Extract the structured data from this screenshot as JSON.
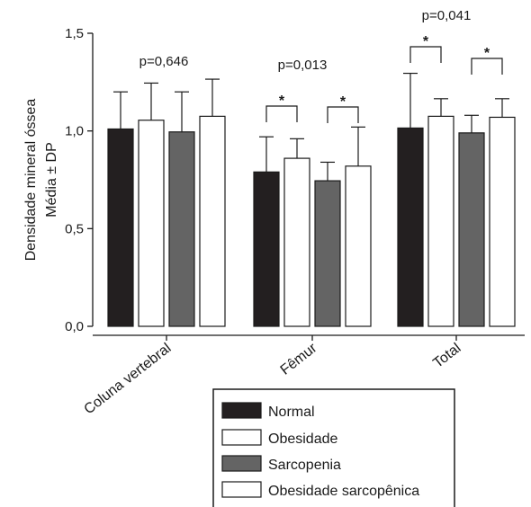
{
  "chart_data": {
    "type": "bar",
    "ylabel_line1": "Densidade mineral óssea",
    "ylabel_line2": "Média ± DP",
    "ylim": [
      0,
      1.5
    ],
    "y_ticks": [
      "0,0",
      "0,5",
      "1,0",
      "1,5"
    ],
    "y_tick_values": [
      0,
      0.5,
      1.0,
      1.5
    ],
    "categories": [
      "Coluna vertebral",
      "Fêmur",
      "Total"
    ],
    "series": [
      {
        "name": "Normal",
        "color": "#231f20",
        "values": [
          1.01,
          0.79,
          1.015
        ],
        "sd": [
          0.19,
          0.18,
          0.28
        ]
      },
      {
        "name": "Obesidade",
        "color": "#ffffff",
        "values": [
          1.055,
          0.86,
          1.075
        ],
        "sd": [
          0.19,
          0.1,
          0.09
        ]
      },
      {
        "name": "Sarcopenia",
        "color": "#646464",
        "values": [
          0.995,
          0.745,
          0.99
        ],
        "sd": [
          0.205,
          0.095,
          0.09
        ]
      },
      {
        "name": "Obesidade sarcopênica",
        "color": "#ffffff",
        "values": [
          1.075,
          0.82,
          1.07
        ],
        "sd": [
          0.19,
          0.2,
          0.095
        ]
      }
    ],
    "p_values": [
      "p=0,646",
      "p=0,013",
      "p=0,041"
    ],
    "significance_marker": "*",
    "legend_position": "bottom"
  }
}
